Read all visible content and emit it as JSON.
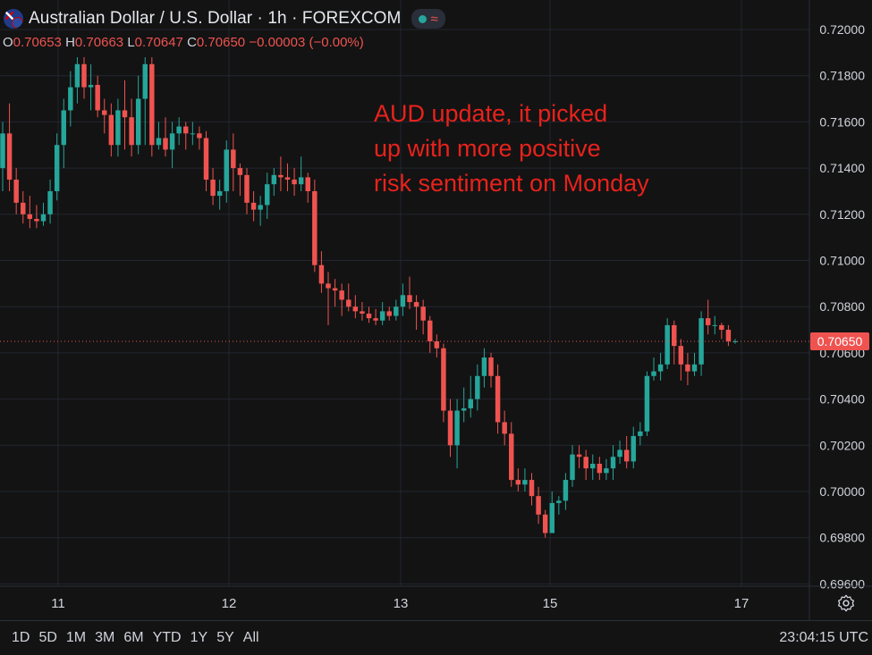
{
  "header": {
    "title": "Australian Dollar / U.S. Dollar · 1h · FOREXCOM",
    "status_icon": "market-open-dot-icon",
    "wave_icon": "wave-icon",
    "flag_icon": "aud-usd-flag-icon"
  },
  "ohlc": {
    "o_label": "O",
    "o_value": "0.70653",
    "h_label": "H",
    "h_value": "0.70663",
    "l_label": "L",
    "l_value": "0.70647",
    "c_label": "C",
    "c_value": "0.70650",
    "change": "−0.00003 (−0.00%)"
  },
  "annotation": {
    "lines": [
      "AUD update, it picked",
      "up with more positive",
      "risk sentiment on Monday"
    ]
  },
  "time_ranges": [
    "1D",
    "5D",
    "1M",
    "3M",
    "6M",
    "YTD",
    "1Y",
    "5Y",
    "All"
  ],
  "clock": "23:04:15 UTC",
  "colors": {
    "up": "#26a69a",
    "down": "#ef5350",
    "bg": "#131313",
    "grid": "#222631",
    "annotation": "#e8221c"
  },
  "chart_data": {
    "type": "candlestick",
    "symbol": "AUD/USD",
    "interval": "1h",
    "ylim": [
      0.696,
      0.72
    ],
    "y_ticks": [
      "0.72000",
      "0.71800",
      "0.71600",
      "0.71400",
      "0.71200",
      "0.71000",
      "0.70800",
      "0.70600",
      "0.70400",
      "0.70200",
      "0.70000",
      "0.69800",
      "0.69600"
    ],
    "x_ticks": [
      "11",
      "12",
      "13",
      "15",
      "17"
    ],
    "last_price": "0.70650",
    "candles": [
      [
        0.714,
        0.7155,
        0.716,
        0.713
      ],
      [
        0.7155,
        0.7135,
        0.7168,
        0.713
      ],
      [
        0.7135,
        0.7125,
        0.714,
        0.712
      ],
      [
        0.7125,
        0.712,
        0.713,
        0.7116
      ],
      [
        0.712,
        0.7118,
        0.7128,
        0.7114
      ],
      [
        0.7118,
        0.7117,
        0.7124,
        0.7114
      ],
      [
        0.7117,
        0.712,
        0.7125,
        0.7115
      ],
      [
        0.712,
        0.713,
        0.7135,
        0.7116
      ],
      [
        0.713,
        0.715,
        0.7155,
        0.7126
      ],
      [
        0.715,
        0.7165,
        0.717,
        0.714
      ],
      [
        0.7165,
        0.7175,
        0.7182,
        0.7158
      ],
      [
        0.7175,
        0.7185,
        0.7188,
        0.7168
      ],
      [
        0.7185,
        0.7175,
        0.7188,
        0.717
      ],
      [
        0.7175,
        0.7176,
        0.7185,
        0.7165
      ],
      [
        0.7176,
        0.7165,
        0.718,
        0.7162
      ],
      [
        0.7165,
        0.7163,
        0.717,
        0.7155
      ],
      [
        0.7163,
        0.715,
        0.7168,
        0.7145
      ],
      [
        0.715,
        0.7165,
        0.717,
        0.7145
      ],
      [
        0.7165,
        0.7162,
        0.7178,
        0.7148
      ],
      [
        0.7162,
        0.715,
        0.717,
        0.7145
      ],
      [
        0.715,
        0.717,
        0.718,
        0.7146
      ],
      [
        0.717,
        0.7185,
        0.7188,
        0.715
      ],
      [
        0.7185,
        0.715,
        0.7188,
        0.7145
      ],
      [
        0.715,
        0.7153,
        0.716,
        0.7148
      ],
      [
        0.7153,
        0.7148,
        0.7162,
        0.7145
      ],
      [
        0.7148,
        0.7155,
        0.716,
        0.714
      ],
      [
        0.7155,
        0.7158,
        0.7162,
        0.715
      ],
      [
        0.7158,
        0.7155,
        0.716,
        0.7148
      ],
      [
        0.7155,
        0.7155,
        0.716,
        0.715
      ],
      [
        0.7155,
        0.7153,
        0.7158,
        0.7148
      ],
      [
        0.7153,
        0.7135,
        0.7156,
        0.713
      ],
      [
        0.7135,
        0.7128,
        0.714,
        0.7124
      ],
      [
        0.7128,
        0.713,
        0.7135,
        0.7122
      ],
      [
        0.713,
        0.7148,
        0.7152,
        0.7125
      ],
      [
        0.7148,
        0.714,
        0.7155,
        0.713
      ],
      [
        0.714,
        0.7137,
        0.7142,
        0.7128
      ],
      [
        0.7137,
        0.7125,
        0.714,
        0.712
      ],
      [
        0.7125,
        0.7122,
        0.713,
        0.7117
      ],
      [
        0.7122,
        0.7124,
        0.7128,
        0.7115
      ],
      [
        0.7124,
        0.7133,
        0.7138,
        0.7118
      ],
      [
        0.7133,
        0.7137,
        0.714,
        0.7128
      ],
      [
        0.7137,
        0.7136,
        0.7145,
        0.713
      ],
      [
        0.7136,
        0.7135,
        0.7142,
        0.713
      ],
      [
        0.7135,
        0.7133,
        0.714,
        0.7128
      ],
      [
        0.7133,
        0.7136,
        0.7145,
        0.713
      ],
      [
        0.7136,
        0.713,
        0.7138,
        0.7125
      ],
      [
        0.713,
        0.7098,
        0.7135,
        0.7095
      ],
      [
        0.7098,
        0.709,
        0.7104,
        0.7086
      ],
      [
        0.709,
        0.7088,
        0.7095,
        0.7072
      ],
      [
        0.7088,
        0.7087,
        0.7092,
        0.708
      ],
      [
        0.7087,
        0.7083,
        0.709,
        0.7076
      ],
      [
        0.7083,
        0.708,
        0.709,
        0.7078
      ],
      [
        0.708,
        0.7078,
        0.7085,
        0.7075
      ],
      [
        0.7078,
        0.7077,
        0.7082,
        0.7074
      ],
      [
        0.7077,
        0.7075,
        0.708,
        0.7073
      ],
      [
        0.7075,
        0.7074,
        0.7079,
        0.7072
      ],
      [
        0.7074,
        0.7078,
        0.7082,
        0.7072
      ],
      [
        0.7078,
        0.7076,
        0.708,
        0.7074
      ],
      [
        0.7076,
        0.708,
        0.7083,
        0.7074
      ],
      [
        0.708,
        0.7085,
        0.709,
        0.7076
      ],
      [
        0.7085,
        0.7082,
        0.7093,
        0.7079
      ],
      [
        0.7082,
        0.708,
        0.7085,
        0.707
      ],
      [
        0.708,
        0.7074,
        0.7083,
        0.7068
      ],
      [
        0.7074,
        0.7065,
        0.7076,
        0.706
      ],
      [
        0.7065,
        0.7062,
        0.7068,
        0.7058
      ],
      [
        0.7062,
        0.7035,
        0.7064,
        0.703
      ],
      [
        0.7035,
        0.702,
        0.704,
        0.7015
      ],
      [
        0.702,
        0.7035,
        0.704,
        0.701
      ],
      [
        0.7035,
        0.7036,
        0.7045,
        0.703
      ],
      [
        0.7036,
        0.704,
        0.705,
        0.7032
      ],
      [
        0.704,
        0.705,
        0.7055,
        0.7035
      ],
      [
        0.705,
        0.7058,
        0.7062,
        0.7045
      ],
      [
        0.7058,
        0.705,
        0.706,
        0.7045
      ],
      [
        0.705,
        0.703,
        0.7055,
        0.7025
      ],
      [
        0.703,
        0.7025,
        0.7035,
        0.702
      ],
      [
        0.7025,
        0.7005,
        0.703,
        0.7002
      ],
      [
        0.7005,
        0.7003,
        0.701,
        0.7
      ],
      [
        0.7003,
        0.7005,
        0.701,
        0.7
      ],
      [
        0.7005,
        0.6998,
        0.7008,
        0.6994
      ],
      [
        0.6998,
        0.699,
        0.7002,
        0.6986
      ],
      [
        0.699,
        0.6982,
        0.6992,
        0.698
      ],
      [
        0.6982,
        0.6995,
        0.7,
        0.6982
      ],
      [
        0.6995,
        0.6996,
        0.6998,
        0.699
      ],
      [
        0.6996,
        0.7005,
        0.7008,
        0.6992
      ],
      [
        0.7005,
        0.7016,
        0.702,
        0.7002
      ],
      [
        0.7016,
        0.7015,
        0.702,
        0.701
      ],
      [
        0.7015,
        0.701,
        0.7018,
        0.7005
      ],
      [
        0.701,
        0.7012,
        0.7016,
        0.7005
      ],
      [
        0.7012,
        0.7008,
        0.7015,
        0.7005
      ],
      [
        0.7008,
        0.701,
        0.7014,
        0.7005
      ],
      [
        0.701,
        0.7015,
        0.702,
        0.7005
      ],
      [
        0.7015,
        0.7018,
        0.7022,
        0.7012
      ],
      [
        0.7018,
        0.7013,
        0.7024,
        0.701
      ],
      [
        0.7013,
        0.7024,
        0.7028,
        0.701
      ],
      [
        0.7024,
        0.7026,
        0.703,
        0.702
      ],
      [
        0.7026,
        0.705,
        0.7052,
        0.7024
      ],
      [
        0.705,
        0.7052,
        0.7058,
        0.7048
      ],
      [
        0.7052,
        0.7055,
        0.706,
        0.7048
      ],
      [
        0.7055,
        0.7072,
        0.7075,
        0.7053
      ],
      [
        0.7072,
        0.7063,
        0.7074,
        0.7055
      ],
      [
        0.7063,
        0.7055,
        0.7066,
        0.7048
      ],
      [
        0.7055,
        0.7052,
        0.706,
        0.7046
      ],
      [
        0.7052,
        0.7055,
        0.706,
        0.705
      ],
      [
        0.7055,
        0.7075,
        0.7078,
        0.705
      ],
      [
        0.7075,
        0.7072,
        0.7083,
        0.7068
      ],
      [
        0.7072,
        0.7072,
        0.7076,
        0.7068
      ],
      [
        0.7072,
        0.707,
        0.7073,
        0.7066
      ],
      [
        0.707,
        0.7065,
        0.7072,
        0.7063
      ],
      [
        0.7065,
        0.7065,
        0.7066,
        0.7064
      ]
    ]
  }
}
